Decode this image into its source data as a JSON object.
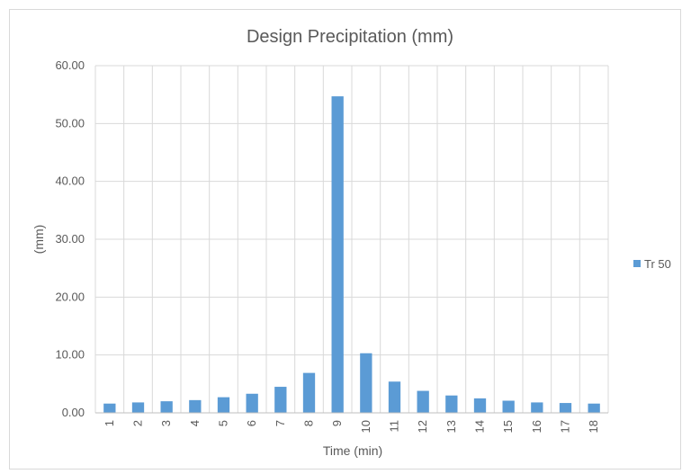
{
  "chart_data": {
    "type": "bar",
    "title": "Design Precipitation (mm)",
    "xlabel": "Time (min)",
    "ylabel": "(mm)",
    "categories": [
      "1",
      "2",
      "3",
      "4",
      "5",
      "6",
      "7",
      "8",
      "9",
      "10",
      "11",
      "12",
      "13",
      "14",
      "15",
      "16",
      "17",
      "18"
    ],
    "series": [
      {
        "name": "Tr 50",
        "color": "#5b9bd5",
        "values": [
          1.6,
          1.8,
          2.0,
          2.2,
          2.7,
          3.3,
          4.5,
          6.9,
          54.7,
          10.3,
          5.4,
          3.8,
          3.0,
          2.5,
          2.1,
          1.8,
          1.7,
          1.6
        ]
      }
    ],
    "ylim": [
      0,
      60
    ],
    "yticks": [
      "0.00",
      "10.00",
      "20.00",
      "30.00",
      "40.00",
      "50.00",
      "60.00"
    ],
    "grid": "vertical and horizontal",
    "legend_position": "right"
  }
}
